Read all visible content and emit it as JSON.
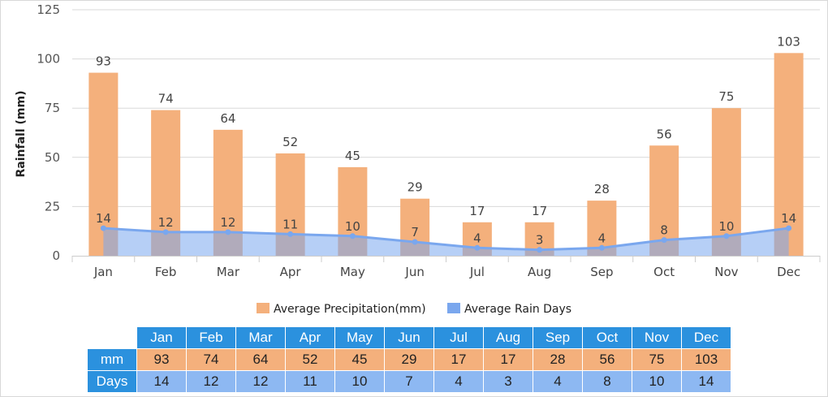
{
  "chart_data": {
    "type": "bar",
    "ylabel": "Rainfall (mm)",
    "ylim": [
      0,
      125
    ],
    "yticks": [
      0,
      25,
      50,
      75,
      100,
      125
    ],
    "grid": true,
    "legend_position": "bottom",
    "categories": [
      "Jan",
      "Feb",
      "Mar",
      "Apr",
      "May",
      "Jun",
      "Jul",
      "Aug",
      "Sep",
      "Oct",
      "Nov",
      "Dec"
    ],
    "series": [
      {
        "name": "Average Precipitation(mm)",
        "type": "bar",
        "color": "#f4b07c",
        "values": [
          93,
          74,
          64,
          52,
          45,
          29,
          17,
          17,
          28,
          56,
          75,
          103
        ]
      },
      {
        "name": "Average Rain Days",
        "type": "area",
        "color": "#7aa7ee",
        "values": [
          14,
          12,
          12,
          11,
          10,
          7,
          4,
          3,
          4,
          8,
          10,
          14
        ]
      }
    ]
  },
  "table": {
    "row_labels": [
      "mm",
      "Days"
    ],
    "colors": {
      "header": "#2b91de",
      "mm_row": "#f4b07c",
      "days_row": "#8db8f2"
    }
  }
}
